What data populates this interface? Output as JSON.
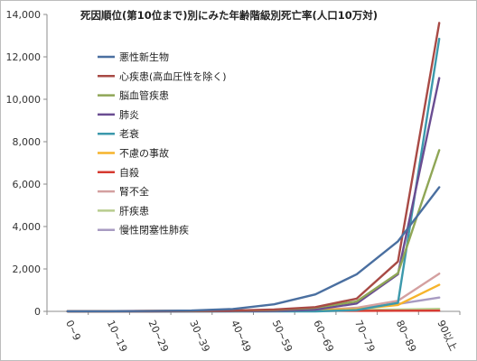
{
  "chart_data": {
    "type": "line",
    "title": "死因順位(第10位まで)別にみた年齢階級別死亡率(人口10万対)",
    "categories": [
      "0~9",
      "10~19",
      "20~29",
      "30~39",
      "40~49",
      "50~59",
      "60~69",
      "70~79",
      "80~89",
      "90以上"
    ],
    "y_tick_labels": [
      "0",
      "2,000",
      "4,000",
      "6,000",
      "8,000",
      "10,000",
      "12,000",
      "14,000"
    ],
    "ylim": [
      0,
      14000
    ],
    "grid": false,
    "legend_position": "top-left inside",
    "series": [
      {
        "name": "悪性新生物",
        "color": "#4a6fa0",
        "values": [
          5,
          5,
          15,
          40,
          110,
          330,
          800,
          1750,
          3300,
          5850
        ]
      },
      {
        "name": "心疾患(高血圧性を除く)",
        "color": "#a84a45",
        "values": [
          2,
          2,
          5,
          15,
          40,
          90,
          200,
          600,
          2350,
          13600
        ]
      },
      {
        "name": "脳血管疾患",
        "color": "#8fa656",
        "values": [
          1,
          1,
          3,
          8,
          30,
          70,
          170,
          470,
          1800,
          7600
        ]
      },
      {
        "name": "肺炎",
        "color": "#6a4d92",
        "values": [
          3,
          1,
          1,
          3,
          8,
          20,
          80,
          370,
          1750,
          11000
        ]
      },
      {
        "name": "老衰",
        "color": "#3c99ac",
        "values": [
          0,
          0,
          0,
          0,
          0,
          0,
          2,
          60,
          400,
          12850
        ]
      },
      {
        "name": "不慮の事故",
        "color": "#f6b42c",
        "values": [
          8,
          10,
          18,
          20,
          25,
          35,
          60,
          100,
          300,
          1250
        ]
      },
      {
        "name": "自殺",
        "color": "#d63a30",
        "values": [
          0,
          10,
          25,
          30,
          30,
          30,
          25,
          25,
          30,
          35
        ]
      },
      {
        "name": "腎不全",
        "color": "#d4a0a0",
        "values": [
          0,
          0,
          0,
          2,
          8,
          20,
          60,
          170,
          500,
          1780
        ]
      },
      {
        "name": "肝疾患",
        "color": "#b8cc8e",
        "values": [
          0,
          0,
          2,
          10,
          25,
          40,
          60,
          70,
          90,
          120
        ]
      },
      {
        "name": "慢性閉塞性肺疾",
        "color": "#a89bc2",
        "values": [
          0,
          0,
          0,
          0,
          2,
          10,
          40,
          140,
          350,
          650
        ]
      }
    ]
  }
}
